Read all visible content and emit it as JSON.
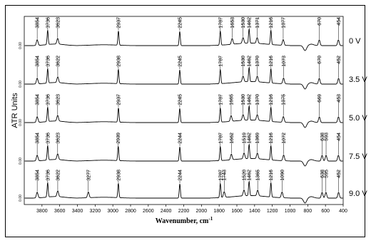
{
  "chart_data": {
    "type": "line",
    "title": "",
    "xlabel": "Wavenumber, cm",
    "xlabel_sup": "-1",
    "ylabel": "ATR Units",
    "xlim": [
      4000,
      400
    ],
    "x_reversed": true,
    "x_ticks": [
      3800,
      3600,
      3400,
      3200,
      3000,
      2800,
      2600,
      2400,
      2200,
      2000,
      1800,
      1600,
      1400,
      1200,
      1000,
      800,
      600,
      400
    ],
    "y_tick_label": "0.00",
    "grid": false,
    "legend": "none",
    "series": [
      {
        "name": "0 V",
        "peaks": [
          3854,
          3736,
          3623,
          2937,
          2245,
          1787,
          1653,
          1530,
          1462,
          1371,
          1216,
          1077,
          670,
          454
        ],
        "peak_labels": [
          "3854",
          "3736",
          "3623",
          "2937",
          "2245",
          "1787",
          "1653",
          "1530",
          "1462",
          "1371",
          "1216",
          "1077",
          "670",
          "454"
        ]
      },
      {
        "name": "3.5 V",
        "peaks": [
          3854,
          3736,
          3622,
          2938,
          2245,
          1787,
          1530,
          1462,
          1370,
          1216,
          1073,
          670,
          452
        ],
        "peak_labels": [
          "3854",
          "3736",
          "3622",
          "2938",
          "2245",
          "1787",
          "1530",
          "1462",
          "1370",
          "1216",
          "1073",
          "670",
          "452"
        ]
      },
      {
        "name": "5.0 V",
        "peaks": [
          3854,
          3736,
          3623,
          2937,
          2245,
          1787,
          1665,
          1530,
          1462,
          1370,
          1216,
          1075,
          669,
          453
        ],
        "peak_labels": [
          "3854",
          "3736",
          "3623",
          "2937",
          "2245",
          "1787",
          "1665",
          "1530",
          "1462",
          "1370",
          "1216",
          "1075",
          "669",
          "453"
        ]
      },
      {
        "name": "7.5 V",
        "peaks": [
          3854,
          3736,
          3623,
          2939,
          2244,
          1787,
          1662,
          1519,
          1462,
          1369,
          1216,
          1072,
          638,
          593,
          454
        ],
        "peak_labels": [
          "3854",
          "3736",
          "3623",
          "2939",
          "2244",
          "1787",
          "1662",
          "1519",
          "1462",
          "1369",
          "1216",
          "1072",
          "638",
          "593",
          "454"
        ]
      },
      {
        "name": "9.0 V",
        "peaks": [
          3854,
          3736,
          3622,
          3277,
          2938,
          2244,
          1787,
          1743,
          1520,
          1462,
          1365,
          1216,
          1090,
          638,
          595,
          452
        ],
        "peak_labels": [
          "3854",
          "3736",
          "3622",
          "3277",
          "2938",
          "2244",
          "1787",
          "1743",
          "1520",
          "1462",
          "1365",
          "1216",
          "1090",
          "638",
          "595",
          "452"
        ]
      }
    ]
  }
}
